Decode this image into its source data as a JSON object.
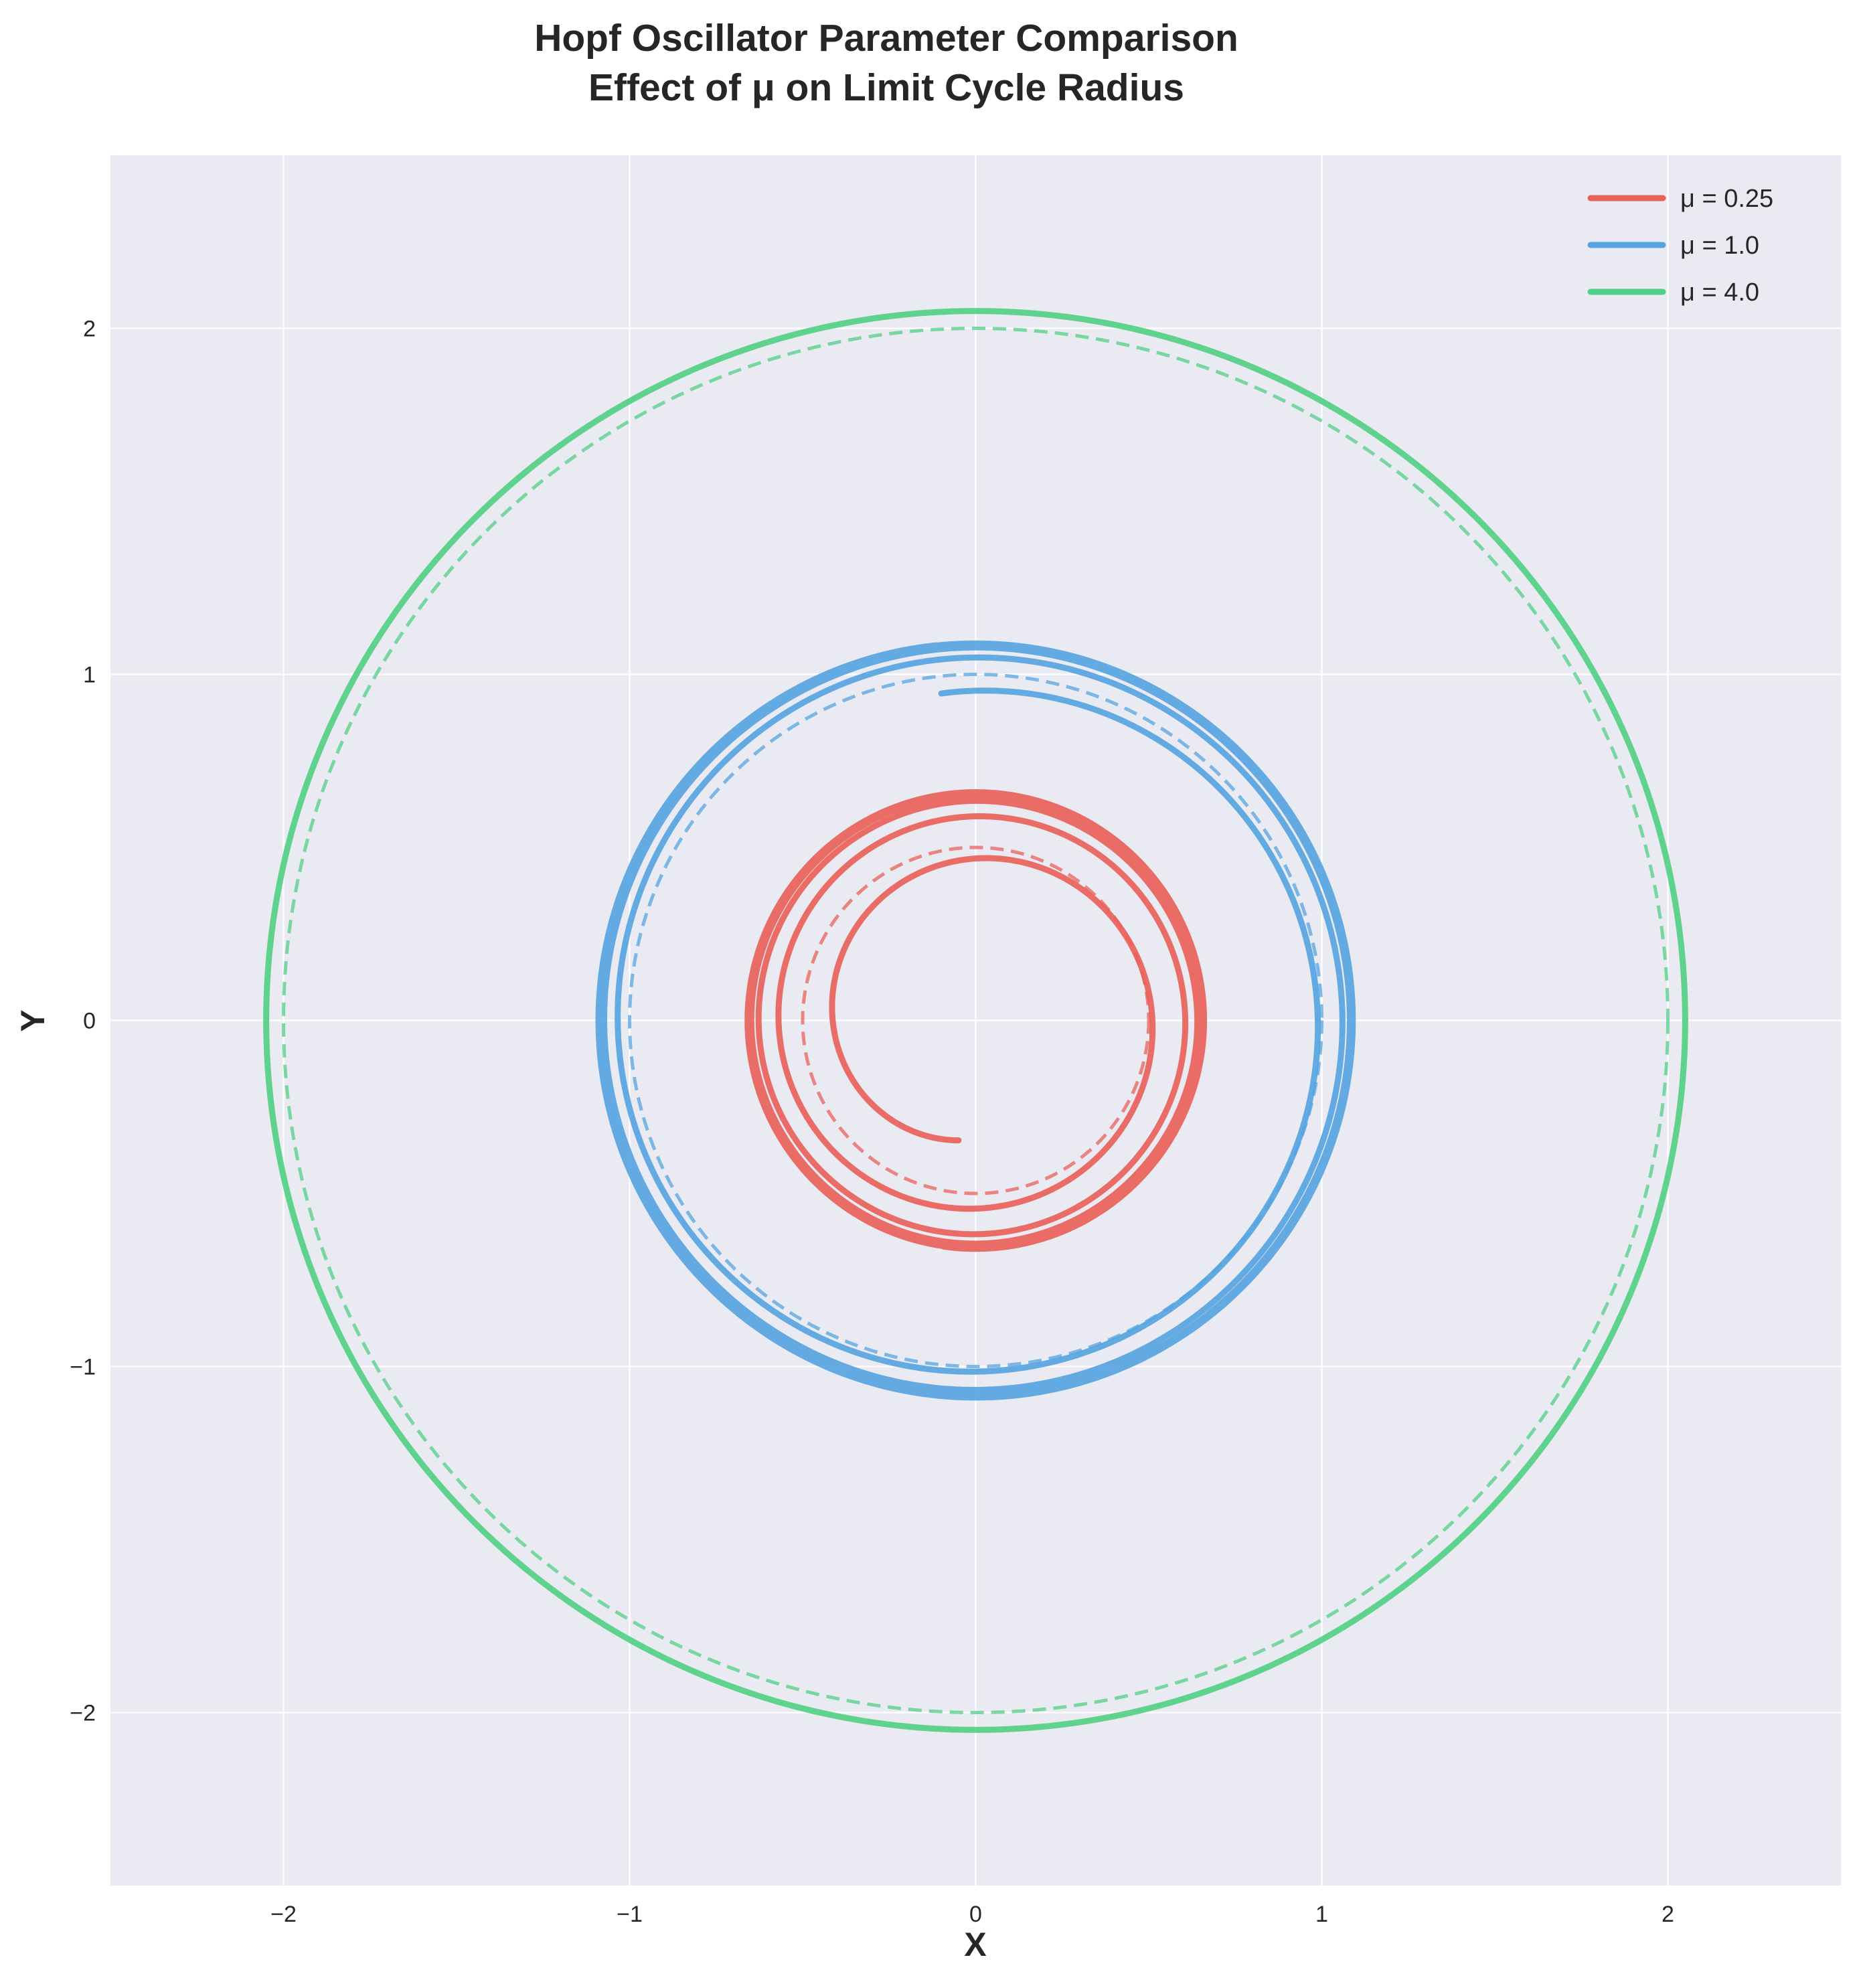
{
  "chart_data": {
    "type": "line",
    "title": "Hopf Oscillator Parameter Comparison",
    "subtitle": "Effect of μ on Limit Cycle Radius",
    "xlabel": "X",
    "ylabel": "Y",
    "xlim": [
      -2.5,
      2.5
    ],
    "ylim": [
      -2.5,
      2.5
    ],
    "xticks": [
      -2,
      -1,
      0,
      1,
      2
    ],
    "yticks": [
      -2,
      -1,
      0,
      1,
      2
    ],
    "xtick_labels": [
      "−2",
      "−1",
      "0",
      "1",
      "2"
    ],
    "ytick_labels": [
      "−2",
      "−1",
      "0",
      "1",
      "2"
    ],
    "grid": true,
    "background": "#eaeaf2",
    "legend_position": "top-right",
    "series": [
      {
        "name": "μ = 0.25",
        "color": "#e8625a",
        "limit_cycle_radius": 0.5,
        "trajectory": {
          "start": [
            -0.05,
            -0.35
          ],
          "start_radius": 0.35,
          "final_radius": 0.66,
          "turns": 6.0
        }
      },
      {
        "name": "μ = 1.0",
        "color": "#56a4e0",
        "limit_cycle_radius": 1.0,
        "trajectory": {
          "start": [
            -0.1,
            0.95
          ],
          "start_radius": 0.95,
          "final_radius": 1.09,
          "turns": 5.0
        }
      },
      {
        "name": "μ = 4.0",
        "color": "#52cf86",
        "limit_cycle_radius": 2.0,
        "trajectory": {
          "start": [
            2.05,
            0.0
          ],
          "start_radius": 2.05,
          "final_radius": 2.05,
          "turns": 3.0
        }
      }
    ]
  }
}
